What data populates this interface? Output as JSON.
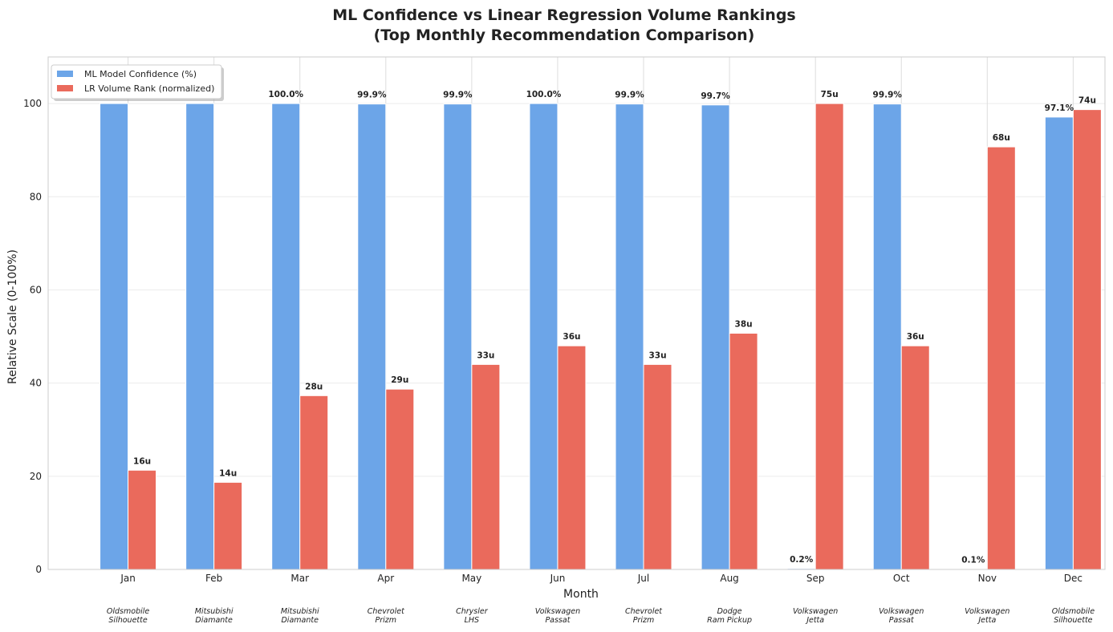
{
  "chart_data": {
    "type": "bar",
    "title_line1": "ML Confidence vs Linear Regression Volume Rankings",
    "title_line2": "(Top Monthly Recommendation Comparison)",
    "xlabel": "Month",
    "ylabel": "Relative Scale (0-100%)",
    "ylim": [
      0,
      110
    ],
    "yticks": [
      0,
      20,
      40,
      60,
      80,
      100
    ],
    "grid": true,
    "legend_position": "top-left",
    "categories": [
      "Jan",
      "Feb",
      "Mar",
      "Apr",
      "May",
      "Jun",
      "Jul",
      "Aug",
      "Sep",
      "Oct",
      "Nov",
      "Dec"
    ],
    "car_models": [
      [
        "Oldsmobile",
        "Silhouette"
      ],
      [
        "Mitsubishi",
        "Diamante"
      ],
      [
        "Mitsubishi",
        "Diamante"
      ],
      [
        "Chevrolet",
        "Prizm"
      ],
      [
        "Chrysler",
        "LHS"
      ],
      [
        "Volkswagen",
        "Passat"
      ],
      [
        "Chevrolet",
        "Prizm"
      ],
      [
        "Dodge",
        "Ram Pickup"
      ],
      [
        "Volkswagen",
        "Jetta"
      ],
      [
        "Volkswagen",
        "Passat"
      ],
      [
        "Volkswagen",
        "Jetta"
      ],
      [
        "Oldsmobile",
        "Silhouette"
      ]
    ],
    "series": [
      {
        "name": "ML Model Confidence (%)",
        "color": "#6ca5e8",
        "values": [
          100.0,
          100.0,
          100.0,
          99.9,
          99.9,
          100.0,
          99.9,
          99.7,
          0.2,
          99.9,
          0.1,
          97.1
        ],
        "labels": [
          "100.0%",
          "100.0%",
          "100.0%",
          "99.9%",
          "99.9%",
          "100.0%",
          "99.9%",
          "99.7%",
          "0.2%",
          "99.9%",
          "0.1%",
          "97.1%"
        ]
      },
      {
        "name": "LR Volume Rank (normalized)",
        "color": "#ea6a5c",
        "values": [
          21.3,
          18.7,
          37.3,
          38.7,
          44.0,
          48.0,
          44.0,
          50.7,
          100.0,
          48.0,
          90.7,
          98.7
        ],
        "labels": [
          "16u",
          "14u",
          "28u",
          "29u",
          "33u",
          "36u",
          "33u",
          "38u",
          "75u",
          "36u",
          "68u",
          "74u"
        ]
      }
    ]
  }
}
